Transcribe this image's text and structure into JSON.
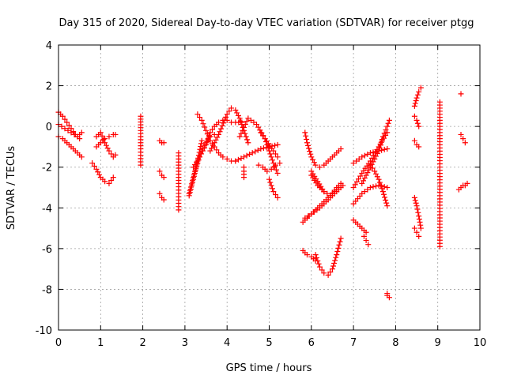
{
  "chart_data": {
    "type": "scatter",
    "title": "Day 315 of 2020, Sidereal Day-to-day VTEC variation (SDTVAR) for receiver ptgg",
    "xlabel": "GPS time / hours",
    "ylabel": "SDTVAR / TECUs",
    "xlim": [
      0,
      10
    ],
    "ylim": [
      -10,
      4
    ],
    "xticks": [
      "0",
      "1",
      "2",
      "3",
      "4",
      "5",
      "6",
      "7",
      "8",
      "9",
      "10"
    ],
    "yticks": [
      "4",
      "2",
      "0",
      "-2",
      "-4",
      "-6",
      "-8",
      "-10"
    ],
    "grid": true,
    "marker": "plus",
    "color": "#ff0000",
    "series": [
      {
        "name": "s1",
        "x": [
          0.0,
          0.1,
          0.2,
          0.3,
          0.4,
          0.5
        ],
        "y": [
          0.7,
          0.5,
          0.2,
          -0.1,
          -0.4,
          -0.6
        ]
      },
      {
        "name": "s2",
        "x": [
          0.0,
          0.1,
          0.2,
          0.3,
          0.4,
          0.5,
          0.55
        ],
        "y": [
          -0.5,
          -0.6,
          -0.8,
          -1.0,
          -1.2,
          -1.4,
          -1.5
        ]
      },
      {
        "name": "s3",
        "x": [
          0.0,
          0.15,
          0.3,
          0.45,
          0.55
        ],
        "y": [
          0.1,
          -0.1,
          -0.3,
          -0.5,
          -0.3
        ]
      },
      {
        "name": "s4",
        "x": [
          0.9,
          1.0,
          1.1,
          1.2,
          1.3,
          1.35
        ],
        "y": [
          -0.5,
          -0.3,
          -0.8,
          -1.2,
          -1.5,
          -1.4
        ]
      },
      {
        "name": "s5",
        "x": [
          0.8,
          0.9,
          1.0,
          1.1,
          1.2,
          1.3
        ],
        "y": [
          -1.8,
          -2.1,
          -2.5,
          -2.7,
          -2.8,
          -2.5
        ]
      },
      {
        "name": "s6",
        "x": [
          0.9,
          1.0,
          1.1,
          1.2,
          1.3,
          1.35
        ],
        "y": [
          -1.0,
          -0.8,
          -0.6,
          -0.5,
          -0.4,
          -0.4
        ]
      },
      {
        "name": "s7",
        "x": [
          1.95,
          1.95,
          1.95,
          1.95
        ],
        "y": [
          0.5,
          -0.2,
          -1.1,
          -1.9
        ]
      },
      {
        "name": "s8",
        "x": [
          2.4,
          2.45,
          2.5
        ],
        "y": [
          -0.7,
          -0.8,
          -0.8
        ]
      },
      {
        "name": "s9",
        "x": [
          2.4,
          2.45,
          2.5
        ],
        "y": [
          -2.2,
          -2.4,
          -2.5
        ]
      },
      {
        "name": "s10",
        "x": [
          2.4,
          2.45,
          2.5
        ],
        "y": [
          -3.3,
          -3.5,
          -3.6
        ]
      },
      {
        "name": "s11",
        "x": [
          2.85,
          2.85,
          2.85
        ],
        "y": [
          -1.3,
          -2.8,
          -4.1
        ]
      },
      {
        "name": "s12",
        "x": [
          3.1,
          3.2,
          3.3,
          3.4,
          3.5,
          3.6,
          3.7
        ],
        "y": [
          -3.3,
          -2.5,
          -1.8,
          -1.2,
          -0.8,
          -0.5,
          -0.4
        ]
      },
      {
        "name": "s13",
        "x": [
          3.1,
          3.2,
          3.3,
          3.4
        ],
        "y": [
          -3.4,
          -2.6,
          -1.7,
          -0.7
        ]
      },
      {
        "name": "s14",
        "x": [
          3.2,
          3.35,
          3.5,
          3.6,
          3.7,
          3.8,
          3.9,
          4.0,
          4.1,
          4.2,
          4.35
        ],
        "y": [
          -2.0,
          -1.5,
          -0.9,
          -0.3,
          0.0,
          0.2,
          0.3,
          0.3,
          0.2,
          0.2,
          0.2
        ]
      },
      {
        "name": "s15",
        "x": [
          3.3,
          3.4,
          3.5,
          3.6,
          3.7,
          3.8,
          3.9,
          4.0,
          4.1,
          4.2
        ],
        "y": [
          0.6,
          0.3,
          -0.2,
          -0.7,
          -1.0,
          -1.3,
          -1.5,
          -1.6,
          -1.7,
          -1.7
        ]
      },
      {
        "name": "s16",
        "x": [
          3.6,
          3.8,
          4.0,
          4.1,
          4.2,
          4.3,
          4.4,
          4.5
        ],
        "y": [
          -1.2,
          -0.4,
          0.6,
          0.9,
          0.8,
          0.4,
          -0.2,
          -0.8
        ]
      },
      {
        "name": "s17",
        "x": [
          4.2,
          4.4,
          4.6,
          4.8,
          5.0,
          5.2
        ],
        "y": [
          -1.7,
          -1.5,
          -1.3,
          -1.1,
          -1.0,
          -0.9
        ]
      },
      {
        "name": "s18",
        "x": [
          4.3,
          4.5,
          4.7,
          4.9,
          5.1,
          5.2
        ],
        "y": [
          -0.5,
          0.4,
          0.1,
          -0.6,
          -1.2,
          -1.5
        ]
      },
      {
        "name": "s19",
        "x": [
          4.4,
          4.4,
          4.4
        ],
        "y": [
          -2.0,
          -2.2,
          -2.5
        ]
      },
      {
        "name": "s20",
        "x": [
          4.8,
          4.9,
          5.0,
          5.1,
          5.2
        ],
        "y": [
          -0.3,
          -0.6,
          -1.2,
          -1.8,
          -2.3
        ]
      },
      {
        "name": "s21",
        "x": [
          5.0,
          5.1,
          5.2
        ],
        "y": [
          -2.6,
          -3.2,
          -3.5
        ]
      },
      {
        "name": "s22",
        "x": [
          4.75,
          4.85,
          4.95,
          5.05,
          5.15,
          5.25
        ],
        "y": [
          -1.9,
          -2.0,
          -2.2,
          -2.1,
          -1.9,
          -1.8
        ]
      },
      {
        "name": "s23",
        "x": [
          5.8,
          5.9,
          6.0,
          6.1,
          6.2,
          6.3,
          6.4,
          6.5,
          6.6,
          6.7
        ],
        "y": [
          -4.7,
          -4.5,
          -4.3,
          -4.1,
          -3.9,
          -3.7,
          -3.5,
          -3.3,
          -3.1,
          -2.9
        ]
      },
      {
        "name": "s24",
        "x": [
          5.85,
          6.0,
          6.2,
          6.4,
          6.6,
          6.75
        ],
        "y": [
          -4.5,
          -4.3,
          -4.0,
          -3.6,
          -3.2,
          -2.9
        ]
      },
      {
        "name": "s25",
        "x": [
          5.8,
          5.9,
          6.0,
          6.1
        ],
        "y": [
          -6.1,
          -6.3,
          -6.4,
          -6.6
        ]
      },
      {
        "name": "s26",
        "x": [
          6.1,
          6.2,
          6.3,
          6.4,
          6.5,
          6.6,
          6.7
        ],
        "y": [
          -6.3,
          -6.9,
          -7.2,
          -7.3,
          -7.0,
          -6.3,
          -5.5
        ]
      },
      {
        "name": "s27",
        "x": [
          5.85,
          5.9,
          6.0,
          6.1,
          6.2,
          6.3,
          6.4,
          6.5,
          6.6,
          6.7
        ],
        "y": [
          -0.3,
          -0.8,
          -1.5,
          -1.9,
          -2.0,
          -1.9,
          -1.7,
          -1.5,
          -1.3,
          -1.1
        ]
      },
      {
        "name": "s28",
        "x": [
          6.0,
          6.15,
          6.3,
          6.45,
          6.6,
          6.7
        ],
        "y": [
          -2.4,
          -2.9,
          -3.2,
          -3.4,
          -3.0,
          -2.8
        ]
      },
      {
        "name": "s29",
        "x": [
          6.0,
          6.15,
          6.3
        ],
        "y": [
          -2.2,
          -2.7,
          -3.2
        ]
      },
      {
        "name": "s30",
        "x": [
          7.0,
          7.2,
          7.4,
          7.6,
          7.8
        ],
        "y": [
          -3.8,
          -3.3,
          -3.0,
          -2.9,
          -3.0
        ]
      },
      {
        "name": "s31",
        "x": [
          7.0,
          7.2,
          7.4,
          7.6,
          7.8
        ],
        "y": [
          -1.8,
          -1.5,
          -1.3,
          -1.2,
          -1.1
        ]
      },
      {
        "name": "s32",
        "x": [
          7.0,
          7.2,
          7.4,
          7.6,
          7.8
        ],
        "y": [
          -3.0,
          -2.3,
          -1.7,
          -1.0,
          -0.3
        ]
      },
      {
        "name": "s33",
        "x": [
          7.2,
          7.4,
          7.6,
          7.7,
          7.8,
          7.85
        ],
        "y": [
          -2.8,
          -2.0,
          -1.2,
          -0.5,
          0.0,
          0.3
        ]
      },
      {
        "name": "s34",
        "x": [
          7.0,
          7.1,
          7.2,
          7.3
        ],
        "y": [
          -4.6,
          -4.8,
          -5.0,
          -5.2
        ]
      },
      {
        "name": "s35",
        "x": [
          7.25,
          7.3,
          7.35
        ],
        "y": [
          -5.4,
          -5.6,
          -5.8
        ]
      },
      {
        "name": "s36",
        "x": [
          7.4,
          7.5,
          7.6,
          7.7,
          7.8
        ],
        "y": [
          -1.9,
          -2.2,
          -2.6,
          -3.2,
          -3.9
        ]
      },
      {
        "name": "s37",
        "x": [
          7.8,
          7.8,
          7.85
        ],
        "y": [
          -8.2,
          -8.3,
          -8.4
        ]
      },
      {
        "name": "s38",
        "x": [
          8.45,
          8.5,
          8.55,
          8.6
        ],
        "y": [
          1.0,
          1.4,
          1.7,
          1.9
        ]
      },
      {
        "name": "s39",
        "x": [
          8.45,
          8.5,
          8.55
        ],
        "y": [
          0.5,
          0.3,
          0.0
        ]
      },
      {
        "name": "s40",
        "x": [
          8.45,
          8.5,
          8.55
        ],
        "y": [
          -0.7,
          -0.9,
          -1.0
        ]
      },
      {
        "name": "s41",
        "x": [
          8.45,
          8.5,
          8.55,
          8.6
        ],
        "y": [
          -3.5,
          -3.9,
          -4.4,
          -5.0
        ]
      },
      {
        "name": "s42",
        "x": [
          8.45,
          8.5,
          8.55
        ],
        "y": [
          -5.0,
          -5.2,
          -5.4
        ]
      },
      {
        "name": "s43",
        "x": [
          9.05,
          9.05,
          9.05,
          9.05
        ],
        "y": [
          1.2,
          -0.9,
          -3.4,
          -5.9
        ]
      },
      {
        "name": "s44",
        "x": [
          9.55,
          9.6,
          9.65
        ],
        "y": [
          -0.4,
          -0.6,
          -0.8
        ]
      },
      {
        "name": "s45",
        "x": [
          9.5,
          9.55,
          9.6,
          9.65,
          9.7
        ],
        "y": [
          -3.1,
          -3.0,
          -2.9,
          -2.9,
          -2.8
        ]
      },
      {
        "name": "s46",
        "x": [
          9.55
        ],
        "y": [
          1.6
        ]
      }
    ]
  }
}
